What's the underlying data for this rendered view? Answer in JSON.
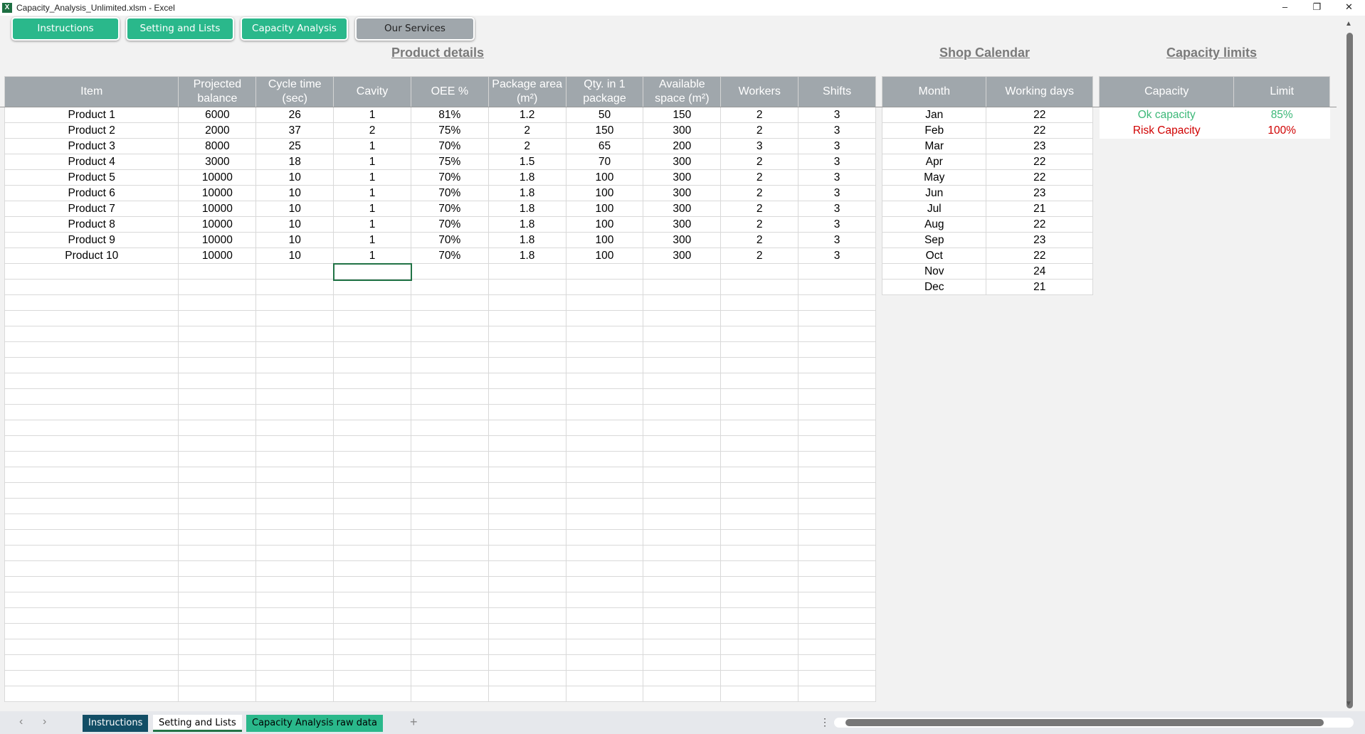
{
  "window": {
    "title": "Capacity_Analysis_Unlimited.xlsm - Excel"
  },
  "nav_buttons": [
    {
      "label": "Instructions"
    },
    {
      "label": "Setting and Lists"
    },
    {
      "label": "Capacity Analysis"
    },
    {
      "label": "Our Services"
    }
  ],
  "sections": {
    "product": "Product details",
    "calendar": "Shop Calendar",
    "limits": "Capacity limits"
  },
  "product_table": {
    "headers": [
      "Item",
      "Projected balance",
      "Cycle time (sec)",
      "Cavity",
      "OEE %",
      "Package area (m²)",
      "Qty. in 1 package",
      "Available space (m²)",
      "Workers",
      "Shifts"
    ],
    "rows": [
      [
        "Product 1",
        "6000",
        "26",
        "1",
        "81%",
        "1.2",
        "50",
        "150",
        "2",
        "3"
      ],
      [
        "Product 2",
        "2000",
        "37",
        "2",
        "75%",
        "2",
        "150",
        "300",
        "2",
        "3"
      ],
      [
        "Product 3",
        "8000",
        "25",
        "1",
        "70%",
        "2",
        "65",
        "200",
        "3",
        "3"
      ],
      [
        "Product 4",
        "3000",
        "18",
        "1",
        "75%",
        "1.5",
        "70",
        "300",
        "2",
        "3"
      ],
      [
        "Product 5",
        "10000",
        "10",
        "1",
        "70%",
        "1.8",
        "100",
        "300",
        "2",
        "3"
      ],
      [
        "Product 6",
        "10000",
        "10",
        "1",
        "70%",
        "1.8",
        "100",
        "300",
        "2",
        "3"
      ],
      [
        "Product 7",
        "10000",
        "10",
        "1",
        "70%",
        "1.8",
        "100",
        "300",
        "2",
        "3"
      ],
      [
        "Product 8",
        "10000",
        "10",
        "1",
        "70%",
        "1.8",
        "100",
        "300",
        "2",
        "3"
      ],
      [
        "Product 9",
        "10000",
        "10",
        "1",
        "70%",
        "1.8",
        "100",
        "300",
        "2",
        "3"
      ],
      [
        "Product 10",
        "10000",
        "10",
        "1",
        "70%",
        "1.8",
        "100",
        "300",
        "2",
        "3"
      ]
    ]
  },
  "calendar_table": {
    "headers": [
      "Month",
      "Working days"
    ],
    "rows": [
      [
        "Jan",
        "22"
      ],
      [
        "Feb",
        "22"
      ],
      [
        "Mar",
        "23"
      ],
      [
        "Apr",
        "22"
      ],
      [
        "May",
        "22"
      ],
      [
        "Jun",
        "23"
      ],
      [
        "Jul",
        "21"
      ],
      [
        "Aug",
        "22"
      ],
      [
        "Sep",
        "23"
      ],
      [
        "Oct",
        "22"
      ],
      [
        "Nov",
        "24"
      ],
      [
        "Dec",
        "21"
      ]
    ]
  },
  "limits_table": {
    "headers": [
      "Capacity",
      "Limit"
    ],
    "rows": [
      {
        "name": "Ok capacity",
        "limit": "85%",
        "color": "#3cb878"
      },
      {
        "name": "Risk Capacity",
        "limit": "100%",
        "color": "#d00000"
      }
    ]
  },
  "sheet_tabs": [
    {
      "label": "Instructions",
      "bg": "#124e66",
      "fg": "#ffffff"
    },
    {
      "label": "Setting and Lists",
      "bg": "#ffffff",
      "fg": "#000000",
      "active": true
    },
    {
      "label": "Capacity Analysis raw data",
      "bg": "#2ab88b",
      "fg": "#000000"
    }
  ],
  "colors": {
    "header": "#a0a7ac",
    "accent": "#2ab88b"
  }
}
